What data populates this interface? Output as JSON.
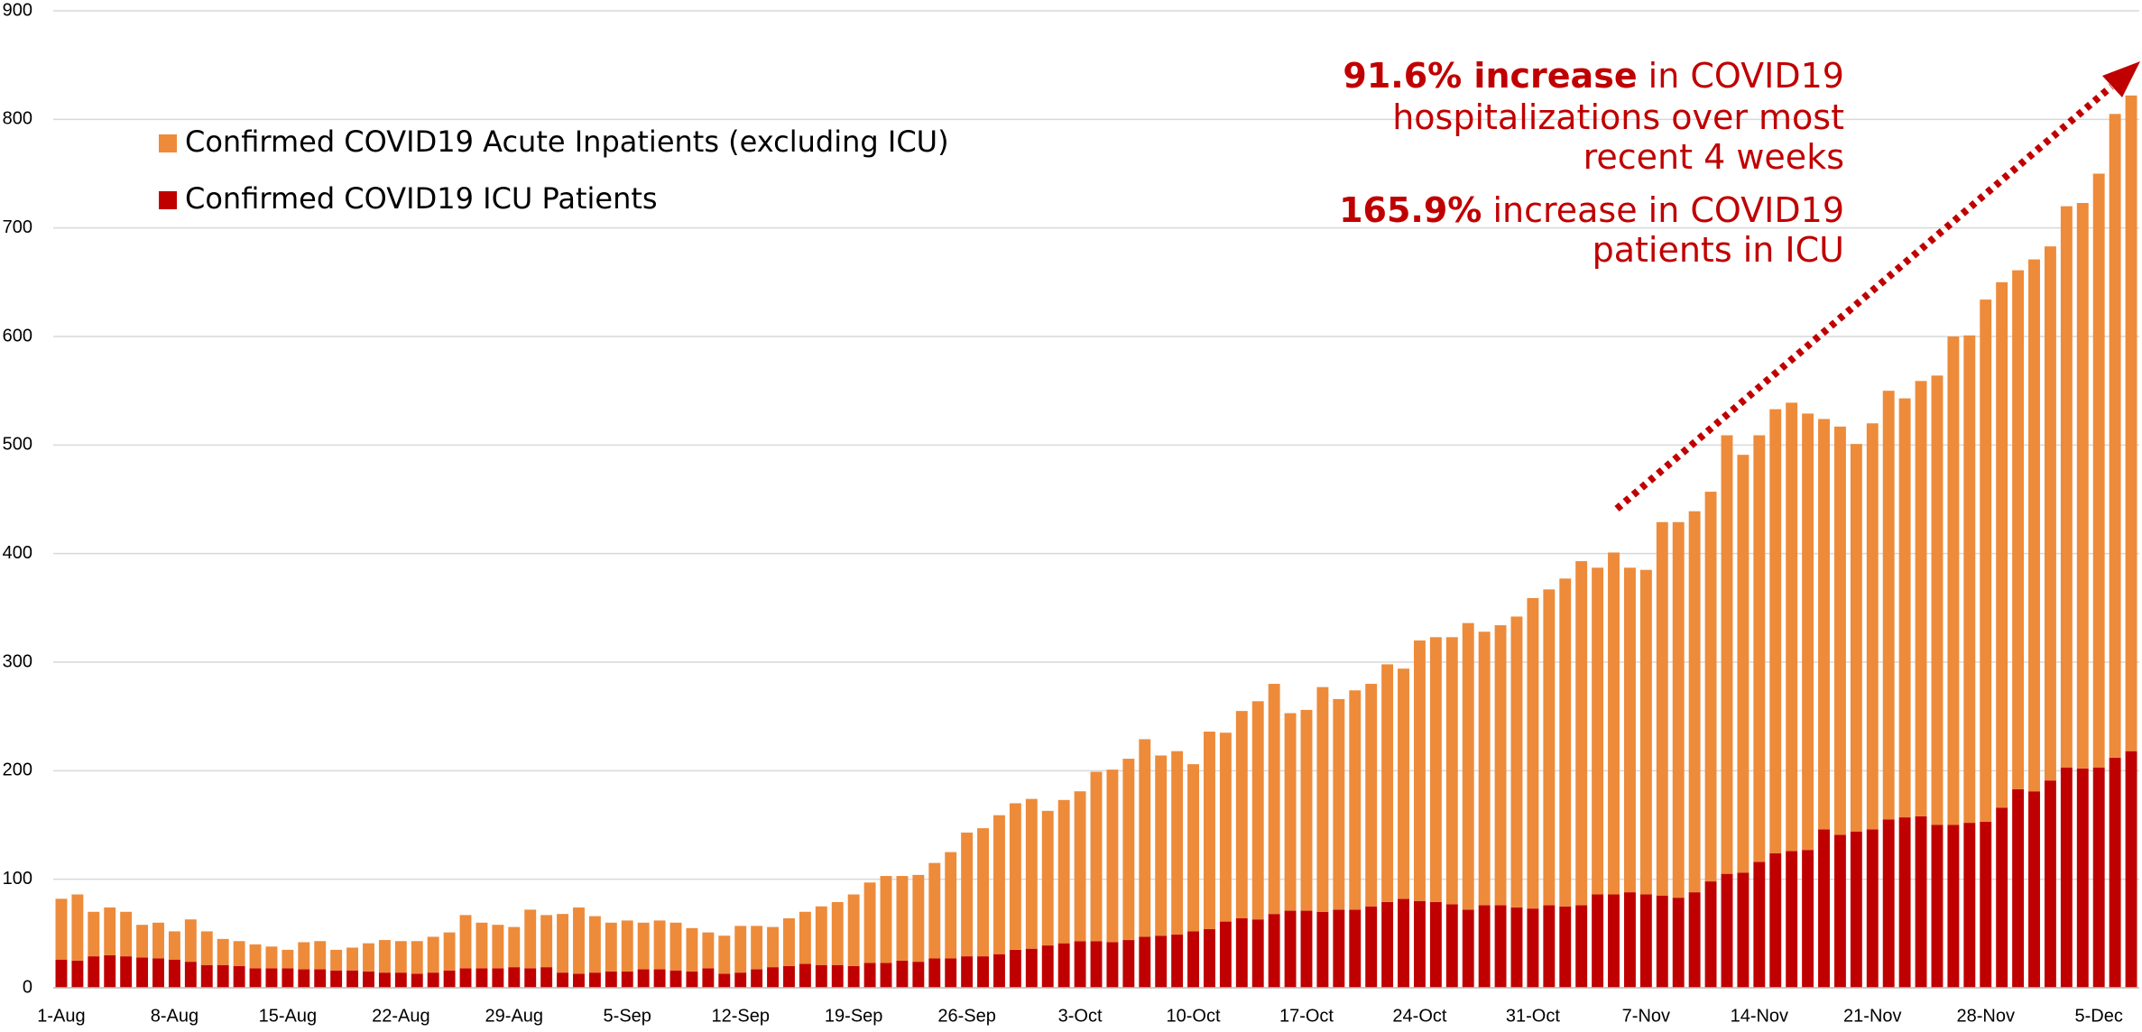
{
  "chart_data": {
    "type": "stacked_bar",
    "categories": [
      "1-Aug",
      null,
      null,
      null,
      null,
      null,
      null,
      "8-Aug",
      null,
      null,
      null,
      null,
      null,
      null,
      "15-Aug",
      null,
      null,
      null,
      null,
      null,
      null,
      "22-Aug",
      null,
      null,
      null,
      null,
      null,
      null,
      "29-Aug",
      null,
      null,
      null,
      null,
      null,
      null,
      "5-Sep",
      null,
      null,
      null,
      null,
      null,
      null,
      "12-Sep",
      null,
      null,
      null,
      null,
      null,
      null,
      "19-Sep",
      null,
      null,
      null,
      null,
      null,
      null,
      "26-Sep",
      null,
      null,
      null,
      null,
      null,
      null,
      "3-Oct",
      null,
      null,
      null,
      null,
      null,
      null,
      "10-Oct",
      null,
      null,
      null,
      null,
      null,
      null,
      "17-Oct",
      null,
      null,
      null,
      null,
      null,
      null,
      "24-Oct",
      null,
      null,
      null,
      null,
      null,
      null,
      "31-Oct",
      null,
      null,
      null,
      null,
      null,
      null,
      "7-Nov",
      null,
      null,
      null,
      null,
      null,
      null,
      "14-Nov",
      null,
      null,
      null,
      null,
      null,
      null,
      "21-Nov",
      null,
      null,
      null,
      null,
      null,
      null,
      "28-Nov",
      null,
      null,
      null,
      null,
      null,
      null,
      "5-Dec",
      null,
      null
    ],
    "series": [
      {
        "name": "Confirmed COVID19 Acute Inpatients (excluding ICU)",
        "color": "#ed8b3a",
        "values": [
          56,
          61,
          41,
          44,
          41,
          30,
          33,
          26,
          39,
          31,
          24,
          23,
          22,
          20,
          17,
          25,
          26,
          19,
          21,
          26,
          30,
          29,
          30,
          33,
          35,
          49,
          42,
          40,
          37,
          54,
          48,
          54,
          61,
          52,
          45,
          47,
          43,
          45,
          44,
          40,
          33,
          35,
          43,
          40,
          37,
          44,
          48,
          54,
          58,
          66,
          74,
          80,
          78,
          80,
          88,
          98,
          114,
          118,
          128,
          135,
          138,
          124,
          132,
          138,
          156,
          159,
          167,
          182,
          166,
          169,
          154,
          182,
          174,
          191,
          201,
          212,
          182,
          185,
          207,
          194,
          202,
          205,
          219,
          212,
          240,
          244,
          246,
          264,
          252,
          258,
          268,
          286,
          291,
          302,
          317,
          301,
          315,
          299,
          299,
          344,
          346,
          351,
          359,
          404,
          385,
          393,
          409,
          413,
          402,
          378,
          376,
          357,
          374,
          395,
          386,
          401,
          414,
          450,
          449,
          481,
          484,
          478,
          490,
          492,
          517,
          521,
          547,
          593,
          604
        ]
      },
      {
        "name": "Confirmed COVID19 ICU Patients",
        "color": "#c00000",
        "values": [
          26,
          25,
          29,
          30,
          29,
          28,
          27,
          26,
          24,
          21,
          21,
          20,
          18,
          18,
          18,
          17,
          17,
          16,
          16,
          15,
          14,
          14,
          13,
          14,
          16,
          18,
          18,
          18,
          19,
          18,
          19,
          14,
          13,
          14,
          15,
          15,
          17,
          17,
          16,
          15,
          18,
          13,
          14,
          17,
          19,
          20,
          22,
          21,
          21,
          20,
          23,
          23,
          25,
          24,
          27,
          27,
          29,
          29,
          31,
          35,
          36,
          39,
          41,
          43,
          43,
          42,
          44,
          47,
          48,
          49,
          52,
          54,
          61,
          64,
          63,
          68,
          71,
          71,
          70,
          72,
          72,
          75,
          79,
          82,
          80,
          79,
          77,
          72,
          76,
          76,
          74,
          73,
          76,
          75,
          76,
          86,
          86,
          88,
          86,
          85,
          83,
          88,
          98,
          105,
          106,
          116,
          124,
          126,
          127,
          146,
          141,
          144,
          146,
          155,
          157,
          158,
          150,
          150,
          152,
          153,
          166,
          183,
          181,
          191,
          203,
          202,
          203,
          212,
          218
        ]
      }
    ],
    "ylim": [
      0,
      900
    ],
    "yticks": [
      0,
      100,
      200,
      300,
      400,
      500,
      600,
      700,
      800,
      900
    ],
    "grid": true,
    "annotations": [
      [
        {
          "text": "91.6% increase",
          "bold": true
        },
        {
          "text": " in COVID19",
          "bold": false
        }
      ],
      [
        {
          "text": "hospitalizations over most",
          "bold": false
        }
      ],
      [
        {
          "text": "recent 4 weeks",
          "bold": false
        }
      ],
      [
        {
          "text": "165.9%",
          "bold": true
        },
        {
          "text": " increase in COVID19",
          "bold": false
        }
      ],
      [
        {
          "text": "patients in ICU",
          "bold": false
        }
      ]
    ],
    "annotation_color": "#c00000"
  }
}
